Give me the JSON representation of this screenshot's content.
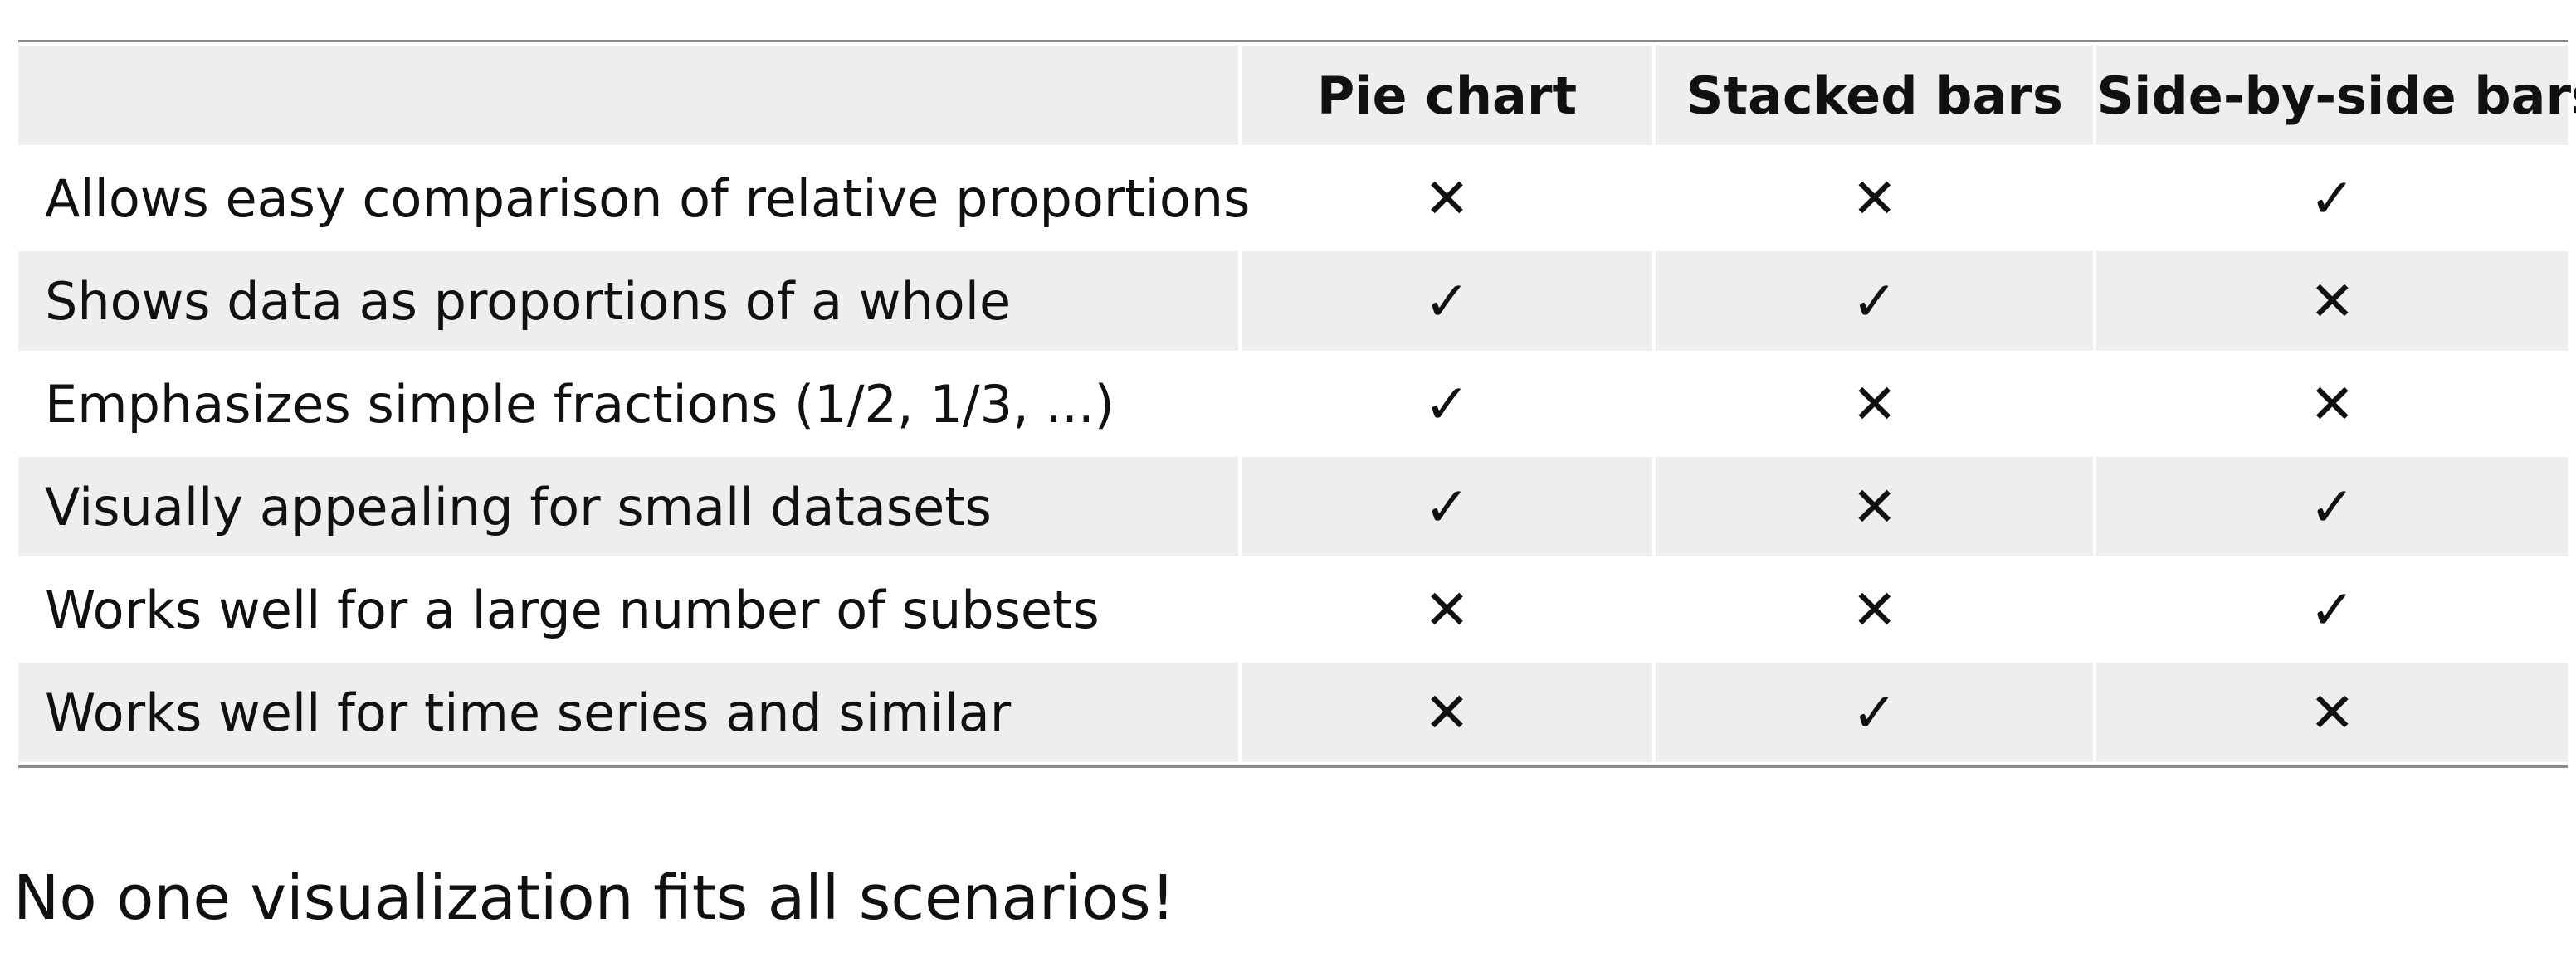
{
  "table": {
    "columns": [
      "",
      "Pie chart",
      "Stacked bars",
      "Side-by-side bars"
    ],
    "rows": [
      {
        "feature": "Allows easy comparison of relative proportions",
        "pie": "✕",
        "stacked": "✕",
        "side": "✓"
      },
      {
        "feature": "Shows data as proportions of a whole",
        "pie": "✓",
        "stacked": "✓",
        "side": "✕"
      },
      {
        "feature": "Emphasizes simple fractions (1/2, 1/3, ...)",
        "pie": "✓",
        "stacked": "✕",
        "side": "✕"
      },
      {
        "feature": "Visually appealing for small datasets",
        "pie": "✓",
        "stacked": "✕",
        "side": "✓"
      },
      {
        "feature": "Works well for a large number of subsets",
        "pie": "✕",
        "stacked": "✕",
        "side": "✓"
      },
      {
        "feature": "Works well for time series and similar",
        "pie": "✕",
        "stacked": "✓",
        "side": "✕"
      }
    ]
  },
  "footer": {
    "note": "No one visualization fits all scenarios!"
  }
}
